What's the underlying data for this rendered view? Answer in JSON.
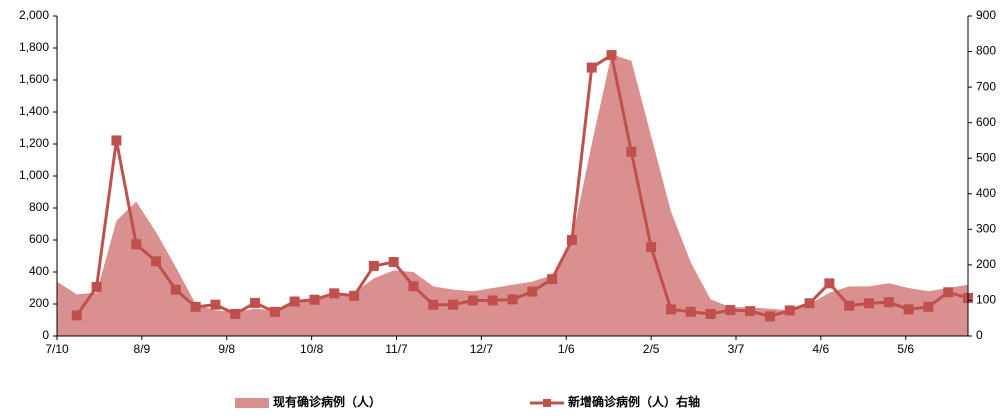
{
  "chart_data": {
    "type": "area-line",
    "x": [
      0,
      7,
      14,
      21,
      28,
      35,
      42,
      49,
      56,
      63,
      70,
      77,
      84,
      91,
      98,
      105,
      112,
      119,
      126,
      133,
      140,
      147,
      154,
      161,
      168,
      175,
      182,
      189,
      196,
      203,
      210,
      217,
      224,
      231,
      238,
      245,
      252,
      259,
      266,
      273,
      280,
      287,
      294,
      301,
      308,
      315,
      322
    ],
    "xlim": [
      0,
      322
    ],
    "xticks": [
      {
        "value": 0,
        "label": "7/10"
      },
      {
        "value": 30,
        "label": "8/9"
      },
      {
        "value": 60,
        "label": "9/8"
      },
      {
        "value": 90,
        "label": "10/8"
      },
      {
        "value": 120,
        "label": "11/7"
      },
      {
        "value": 150,
        "label": "12/7"
      },
      {
        "value": 180,
        "label": "1/6"
      },
      {
        "value": 210,
        "label": "2/5"
      },
      {
        "value": 240,
        "label": "3/7"
      },
      {
        "value": 270,
        "label": "4/6"
      },
      {
        "value": 300,
        "label": "5/6"
      }
    ],
    "ylim": [
      0,
      2000
    ],
    "yticks": [
      0,
      {
        "value": 200,
        "label": "200"
      },
      {
        "value": 400,
        "label": "400"
      },
      {
        "value": 600,
        "label": "600"
      },
      {
        "value": 800,
        "label": "800"
      },
      {
        "value": 1000,
        "label": "1,000"
      },
      {
        "value": 1200,
        "label": "1,200"
      },
      {
        "value": 1400,
        "label": "1,400"
      },
      {
        "value": 1600,
        "label": "1,600"
      },
      {
        "value": 1800,
        "label": "1,800"
      },
      {
        "value": 2000,
        "label": "2,000"
      }
    ],
    "y2lim": [
      0,
      900
    ],
    "y2ticks": [
      0,
      100,
      200,
      300,
      400,
      500,
      600,
      700,
      800,
      900
    ],
    "series": [
      {
        "name": "现有确诊病例（人）",
        "type": "area",
        "color": "#d9908f",
        "values": [
          340,
          260,
          270,
          720,
          840,
          650,
          430,
          200,
          160,
          150,
          170,
          160,
          200,
          230,
          250,
          270,
          360,
          410,
          400,
          310,
          290,
          280,
          300,
          320,
          340,
          380,
          600,
          1200,
          1760,
          1720,
          1250,
          780,
          460,
          230,
          180,
          180,
          170,
          160,
          200,
          270,
          310,
          310,
          330,
          300,
          280,
          300,
          320
        ]
      },
      {
        "name": "新增确诊病例（人）右轴",
        "type": "line",
        "axis": "y2",
        "color": "#c0504d",
        "values": [
          null,
          58,
          138,
          550,
          258,
          210,
          130,
          82,
          88,
          62,
          93,
          68,
          97,
          102,
          120,
          113,
          197,
          208,
          140,
          88,
          88,
          100,
          100,
          103,
          125,
          160,
          270,
          755,
          790,
          518,
          250,
          75,
          68,
          62,
          73,
          70,
          55,
          72,
          92,
          148,
          85,
          92,
          95,
          75,
          82,
          123,
          107
        ]
      }
    ]
  }
}
